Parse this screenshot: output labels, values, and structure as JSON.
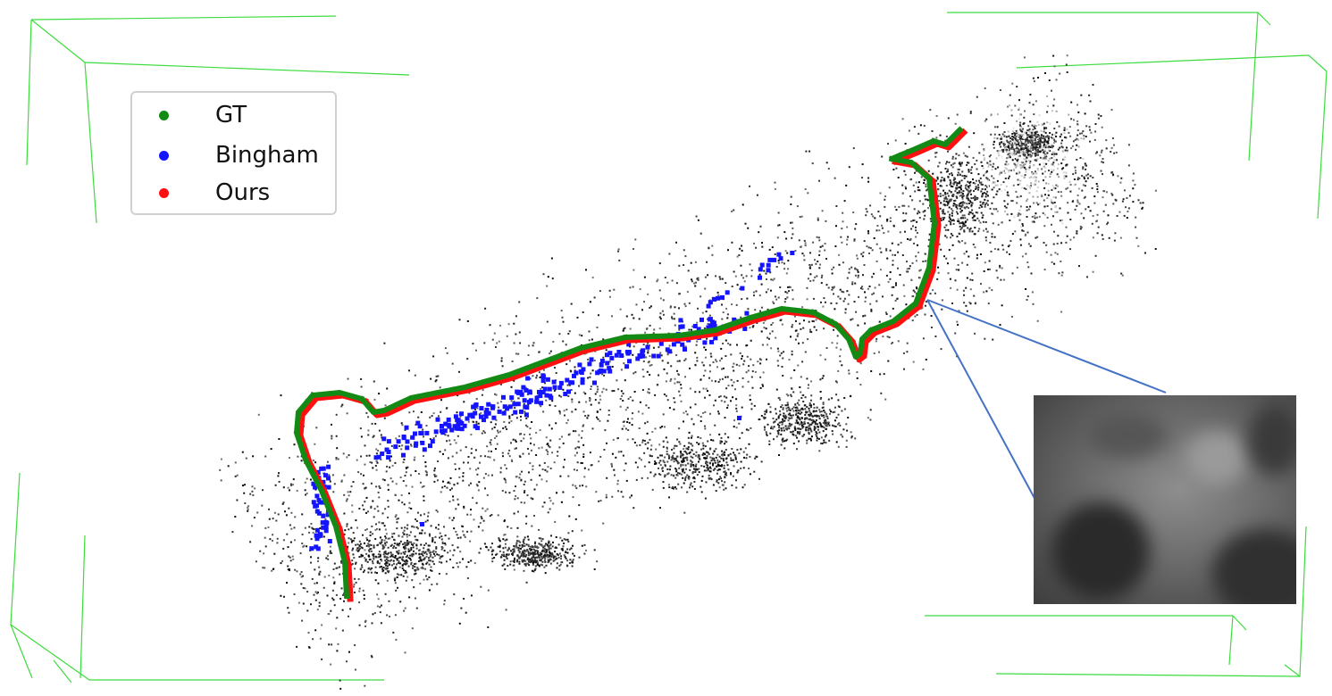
{
  "legend": {
    "items": [
      {
        "label": "GT",
        "color": "#138a13"
      },
      {
        "label": "Bingham",
        "color": "#1414ff"
      },
      {
        "label": "Ours",
        "color": "#ff1010"
      }
    ]
  },
  "colors": {
    "gt": "#138a13",
    "bingham": "#1414ff",
    "ours": "#ff1010",
    "bbox": "#3ddc3d",
    "callout": "#4472c4",
    "points": "#111111"
  },
  "inset": {
    "description_icon": "camera-frame-thumbnail"
  }
}
